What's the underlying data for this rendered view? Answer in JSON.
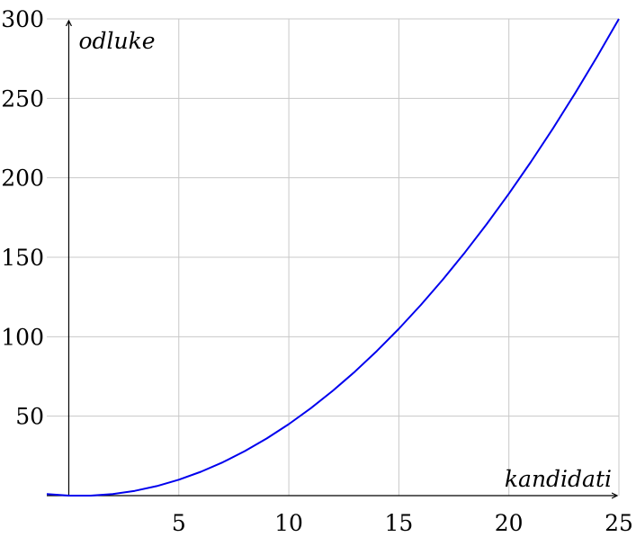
{
  "chart_data": {
    "type": "line",
    "title": "",
    "xlabel": "kandidati",
    "ylabel": "odluke",
    "xlim": [
      -1,
      25
    ],
    "ylim": [
      0,
      300
    ],
    "grid": true,
    "x_ticks": [
      5,
      10,
      15,
      20,
      25
    ],
    "x_tick_labels": [
      "5",
      "10",
      "15",
      "20",
      "25"
    ],
    "y_ticks": [
      50,
      100,
      150,
      200,
      250,
      300
    ],
    "y_tick_labels": [
      "50",
      "100",
      "150",
      "200",
      "250",
      "300"
    ],
    "series": [
      {
        "color": "#0000ee",
        "x": [
          -1,
          0,
          1,
          2,
          3,
          4,
          5,
          6,
          7,
          8,
          9,
          10,
          11,
          12,
          13,
          14,
          15,
          16,
          17,
          18,
          19,
          20,
          21,
          22,
          23,
          24,
          25
        ],
        "values": [
          1,
          0,
          0,
          1,
          3,
          6,
          10,
          15,
          21,
          28,
          36,
          45,
          55,
          66,
          78,
          91,
          105,
          120,
          136,
          153,
          171,
          190,
          210,
          231,
          253,
          276,
          300
        ]
      }
    ]
  }
}
